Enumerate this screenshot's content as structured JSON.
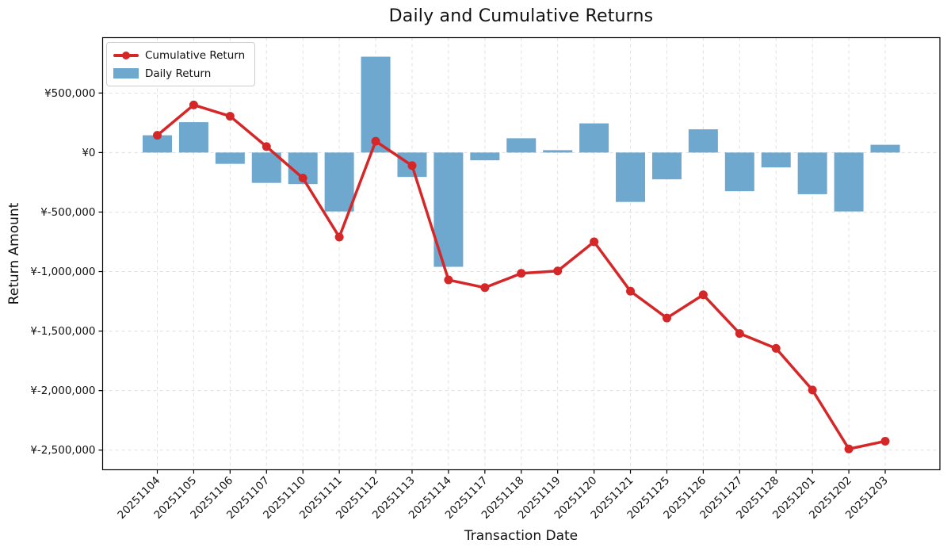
{
  "chart_data": {
    "type": "combo",
    "title": "Daily and Cumulative Returns",
    "xlabel": "Transaction Date",
    "ylabel": "Return Amount",
    "currency": "¥",
    "grid": true,
    "legend_position": "upper left",
    "categories": [
      "20251104",
      "20251105",
      "20251106",
      "20251107",
      "20251110",
      "20251111",
      "20251112",
      "20251113",
      "20251114",
      "20251117",
      "20251118",
      "20251119",
      "20251120",
      "20251121",
      "20251125",
      "20251126",
      "20251127",
      "20251128",
      "20251201",
      "20251202",
      "20251203"
    ],
    "series": [
      {
        "name": "Daily Return",
        "type": "bar",
        "color": "#6fa8cf",
        "values": [
          145000,
          255000,
          -95000,
          -255000,
          -265000,
          -495000,
          805000,
          -205000,
          -960000,
          -65000,
          120000,
          20000,
          245000,
          -415000,
          -225000,
          195000,
          -325000,
          -125000,
          -350000,
          -495000,
          65000
        ]
      },
      {
        "name": "Cumulative Return",
        "type": "line",
        "color": "#d62728",
        "values": [
          145000,
          400000,
          305000,
          50000,
          -215000,
          -710000,
          95000,
          -110000,
          -1070000,
          -1135000,
          -1015000,
          -995000,
          -750000,
          -1165000,
          -1390000,
          -1195000,
          -1520000,
          -1645000,
          -1995000,
          -2490000,
          -2425000
        ]
      }
    ],
    "y_ticks": [
      {
        "value": 500000,
        "label": "¥500,000"
      },
      {
        "value": 0,
        "label": "¥0"
      },
      {
        "value": -500000,
        "label": "¥-500,000"
      },
      {
        "value": -1000000,
        "label": "¥-1,000,000"
      },
      {
        "value": -1500000,
        "label": "¥-1,500,000"
      },
      {
        "value": -2000000,
        "label": "¥-2,000,000"
      },
      {
        "value": -2500000,
        "label": "¥-2,500,000"
      }
    ],
    "ylim": [
      -2665000,
      965000
    ],
    "grid_color": "#dcdcdc",
    "spine_color": "#000000"
  }
}
